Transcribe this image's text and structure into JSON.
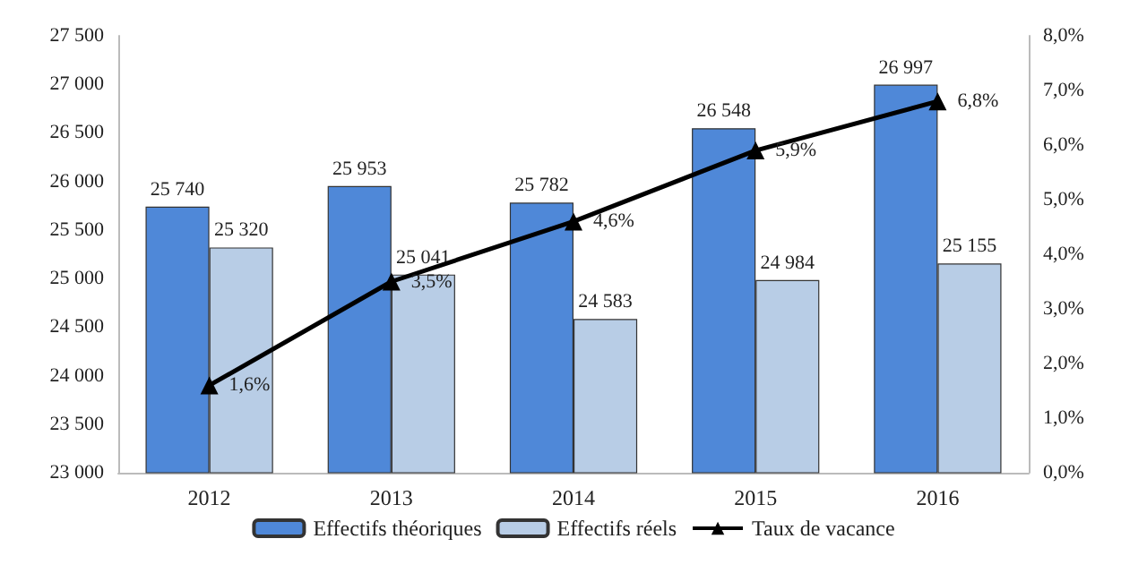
{
  "chart_data": {
    "type": "bar",
    "categories": [
      "2012",
      "2013",
      "2014",
      "2015",
      "2016"
    ],
    "series": [
      {
        "name": "Effectifs théoriques",
        "color": "#4f88d8",
        "values": [
          25740,
          25953,
          25782,
          26548,
          26997
        ],
        "value_labels": [
          "25 740",
          "25 953",
          "25 782",
          "26 548",
          "26 997"
        ]
      },
      {
        "name": "Effectifs réels",
        "color": "#b8cde6",
        "values": [
          25320,
          25041,
          24583,
          24984,
          25155
        ],
        "value_labels": [
          "25 320",
          "25 041",
          "24 583",
          "24 984",
          "25 155"
        ]
      },
      {
        "name": "Taux de vacance",
        "type": "line",
        "axis": "y2",
        "color": "#000000",
        "marker": "triangle",
        "values": [
          1.6,
          3.5,
          4.6,
          5.9,
          6.8
        ],
        "value_labels": [
          "1,6%",
          "3,5%",
          "4,6%",
          "5,9%",
          "6,8%"
        ]
      }
    ],
    "ylim": [
      23000,
      27500
    ],
    "yticks": [
      {
        "value": 23000,
        "label": "23 000"
      },
      {
        "value": 23500,
        "label": "23 500"
      },
      {
        "value": 24000,
        "label": "24 000"
      },
      {
        "value": 24500,
        "label": "24 500"
      },
      {
        "value": 25000,
        "label": "25 000"
      },
      {
        "value": 25500,
        "label": "25 500"
      },
      {
        "value": 26000,
        "label": "26 000"
      },
      {
        "value": 26500,
        "label": "26 500"
      },
      {
        "value": 27000,
        "label": "27 000"
      },
      {
        "value": 27500,
        "label": "27 500"
      }
    ],
    "y2lim": [
      0,
      8
    ],
    "y2ticks": [
      {
        "value": 0,
        "label": "0,0%"
      },
      {
        "value": 1,
        "label": "1,0%"
      },
      {
        "value": 2,
        "label": "2,0%"
      },
      {
        "value": 3,
        "label": "3,0%"
      },
      {
        "value": 4,
        "label": "4,0%"
      },
      {
        "value": 5,
        "label": "5,0%"
      },
      {
        "value": 6,
        "label": "6,0%"
      },
      {
        "value": 7,
        "label": "7,0%"
      },
      {
        "value": 8,
        "label": "8,0%"
      }
    ],
    "legend": "bottom",
    "grid": false
  }
}
